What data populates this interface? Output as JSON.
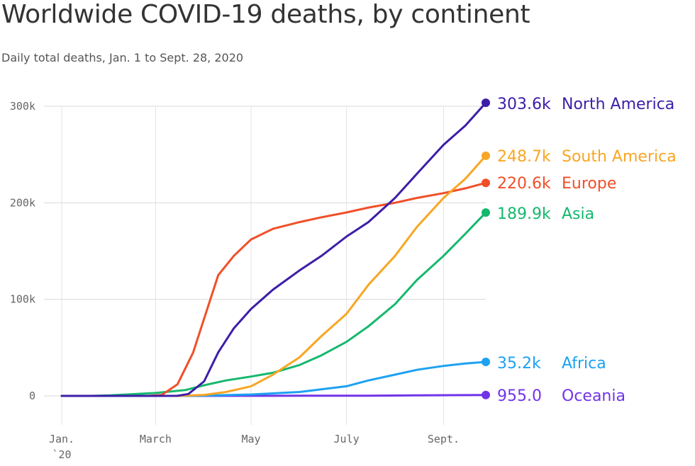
{
  "title": "Worldwide COVID-19 deaths, by continent",
  "subtitle": "Daily total deaths, Jan. 1 to Sept. 28, 2020",
  "chart_data": {
    "type": "line",
    "title": "Worldwide COVID-19 deaths, by continent",
    "subtitle": "Daily total deaths, Jan. 1 to Sept. 28, 2020",
    "xlabel": "",
    "ylabel": "",
    "x_ticks": [
      "Jan. `20",
      "March",
      "May",
      "July",
      "Sept."
    ],
    "x_tick_dates": [
      "2020-01-01",
      "2020-03-01",
      "2020-05-01",
      "2020-07-01",
      "2020-09-01"
    ],
    "xlim": [
      "2020-01-01",
      "2020-09-28"
    ],
    "y_ticks": [
      "0",
      "100k",
      "200k",
      "300k"
    ],
    "y_tick_values": [
      0,
      100000,
      200000,
      300000
    ],
    "ylim": [
      -30000,
      310000
    ],
    "grid": true,
    "legend": "end-of-line labels",
    "series": [
      {
        "name": "North America",
        "color": "#3d1ea8",
        "end_label": "303.6k",
        "points": [
          [
            "2020-01-01",
            0
          ],
          [
            "2020-03-01",
            0
          ],
          [
            "2020-03-15",
            100
          ],
          [
            "2020-03-22",
            2000
          ],
          [
            "2020-04-01",
            15000
          ],
          [
            "2020-04-10",
            45000
          ],
          [
            "2020-04-20",
            70000
          ],
          [
            "2020-05-01",
            90000
          ],
          [
            "2020-05-15",
            110000
          ],
          [
            "2020-06-01",
            130000
          ],
          [
            "2020-06-15",
            145000
          ],
          [
            "2020-07-01",
            165000
          ],
          [
            "2020-07-15",
            180000
          ],
          [
            "2020-08-01",
            205000
          ],
          [
            "2020-08-15",
            230000
          ],
          [
            "2020-09-01",
            260000
          ],
          [
            "2020-09-15",
            280000
          ],
          [
            "2020-09-28",
            303600
          ]
        ]
      },
      {
        "name": "South America",
        "color": "#f8a623",
        "end_label": "248.7k",
        "points": [
          [
            "2020-01-01",
            0
          ],
          [
            "2020-03-15",
            0
          ],
          [
            "2020-04-01",
            1000
          ],
          [
            "2020-04-15",
            4000
          ],
          [
            "2020-05-01",
            10000
          ],
          [
            "2020-05-15",
            22000
          ],
          [
            "2020-06-01",
            40000
          ],
          [
            "2020-06-15",
            62000
          ],
          [
            "2020-07-01",
            85000
          ],
          [
            "2020-07-15",
            115000
          ],
          [
            "2020-08-01",
            145000
          ],
          [
            "2020-08-15",
            175000
          ],
          [
            "2020-09-01",
            205000
          ],
          [
            "2020-09-15",
            225000
          ],
          [
            "2020-09-28",
            248700
          ]
        ]
      },
      {
        "name": "Europe",
        "color": "#f04f28",
        "end_label": "220.6k",
        "points": [
          [
            "2020-01-01",
            0
          ],
          [
            "2020-02-25",
            0
          ],
          [
            "2020-03-05",
            1000
          ],
          [
            "2020-03-15",
            12000
          ],
          [
            "2020-03-25",
            45000
          ],
          [
            "2020-04-01",
            80000
          ],
          [
            "2020-04-10",
            125000
          ],
          [
            "2020-04-20",
            145000
          ],
          [
            "2020-05-01",
            162000
          ],
          [
            "2020-05-15",
            173000
          ],
          [
            "2020-06-01",
            180000
          ],
          [
            "2020-06-15",
            185000
          ],
          [
            "2020-07-01",
            190000
          ],
          [
            "2020-07-15",
            195000
          ],
          [
            "2020-08-01",
            200000
          ],
          [
            "2020-08-15",
            205000
          ],
          [
            "2020-09-01",
            210000
          ],
          [
            "2020-09-15",
            215000
          ],
          [
            "2020-09-28",
            220600
          ]
        ]
      },
      {
        "name": "Asia",
        "color": "#15b86d",
        "end_label": "189.9k",
        "points": [
          [
            "2020-01-01",
            0
          ],
          [
            "2020-01-20",
            0
          ],
          [
            "2020-02-01",
            500
          ],
          [
            "2020-03-01",
            3000
          ],
          [
            "2020-03-20",
            6000
          ],
          [
            "2020-04-01",
            11000
          ],
          [
            "2020-04-15",
            16000
          ],
          [
            "2020-05-01",
            20000
          ],
          [
            "2020-05-15",
            24000
          ],
          [
            "2020-06-01",
            32000
          ],
          [
            "2020-06-15",
            42000
          ],
          [
            "2020-07-01",
            56000
          ],
          [
            "2020-07-15",
            72000
          ],
          [
            "2020-08-01",
            95000
          ],
          [
            "2020-08-15",
            120000
          ],
          [
            "2020-09-01",
            145000
          ],
          [
            "2020-09-15",
            168000
          ],
          [
            "2020-09-28",
            189900
          ]
        ]
      },
      {
        "name": "Africa",
        "color": "#1da1f2",
        "end_label": "35.2k",
        "points": [
          [
            "2020-01-01",
            0
          ],
          [
            "2020-03-15",
            0
          ],
          [
            "2020-04-01",
            300
          ],
          [
            "2020-05-01",
            1500
          ],
          [
            "2020-06-01",
            4000
          ],
          [
            "2020-07-01",
            10000
          ],
          [
            "2020-07-15",
            16000
          ],
          [
            "2020-08-01",
            22000
          ],
          [
            "2020-08-15",
            27000
          ],
          [
            "2020-09-01",
            31000
          ],
          [
            "2020-09-15",
            33500
          ],
          [
            "2020-09-28",
            35200
          ]
        ]
      },
      {
        "name": "Oceania",
        "color": "#7134e8",
        "end_label": "955.0",
        "points": [
          [
            "2020-01-01",
            0
          ],
          [
            "2020-03-15",
            0
          ],
          [
            "2020-04-15",
            80
          ],
          [
            "2020-06-01",
            130
          ],
          [
            "2020-07-15",
            200
          ],
          [
            "2020-08-15",
            600
          ],
          [
            "2020-09-28",
            955
          ]
        ]
      }
    ]
  }
}
